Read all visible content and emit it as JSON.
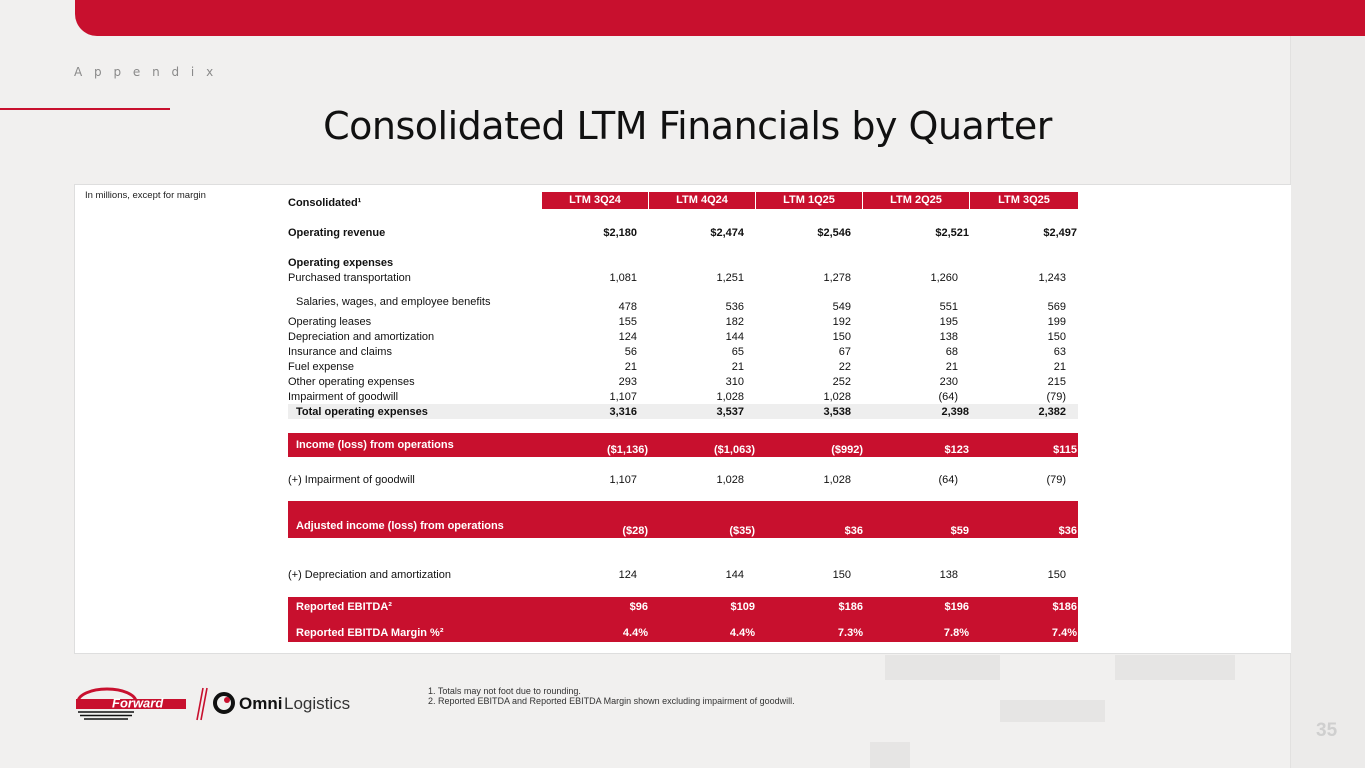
{
  "header": {
    "section": "A p p e n d i x",
    "title": "Consolidated LTM Financials by Quarter"
  },
  "table": {
    "units_note": "In millions, except for margin",
    "corner": "Consolidated¹",
    "columns": [
      "LTM 3Q24",
      "LTM 4Q24",
      "LTM 1Q25",
      "LTM 2Q25",
      "LTM 3Q25"
    ],
    "operating_revenue": {
      "label": "Operating revenue",
      "values": [
        "$2,180",
        "$2,474",
        "$2,546",
        "$2,521",
        "$2,497"
      ]
    },
    "operating_expenses_heading": "Operating expenses",
    "expense_rows": [
      {
        "label": "Purchased transportation",
        "values": [
          "1,081",
          "1,251",
          "1,278",
          "1,260",
          "1,243"
        ]
      },
      {
        "label": "Salaries, wages, and employee benefits",
        "values": [
          "478",
          "536",
          "549",
          "551",
          "569"
        ]
      },
      {
        "label": "Operating leases",
        "values": [
          "155",
          "182",
          "192",
          "195",
          "199"
        ]
      },
      {
        "label": "Depreciation and amortization",
        "values": [
          "124",
          "144",
          "150",
          "138",
          "150"
        ]
      },
      {
        "label": "Insurance and claims",
        "values": [
          "56",
          "65",
          "67",
          "68",
          "63"
        ]
      },
      {
        "label": "Fuel expense",
        "values": [
          "21",
          "21",
          "22",
          "21",
          "21"
        ]
      },
      {
        "label": "Other operating expenses",
        "values": [
          "293",
          "310",
          "252",
          "230",
          "215"
        ]
      },
      {
        "label": "Impairment of goodwill",
        "values": [
          "1,107",
          "1,028",
          "1,028",
          "(64)",
          "(79)"
        ]
      }
    ],
    "total_operating_expenses": {
      "label": "Total operating expenses",
      "values": [
        "3,316",
        "3,537",
        "3,538",
        "2,398",
        "2,382"
      ]
    },
    "income_from_operations": {
      "label": "Income (loss) from operations",
      "values": [
        "($1,136)",
        "($1,063)",
        "($992)",
        "$123",
        "$115"
      ]
    },
    "plus_impairment": {
      "label": "(+) Impairment of goodwill",
      "values": [
        "1,107",
        "1,028",
        "1,028",
        "(64)",
        "(79)"
      ]
    },
    "adjusted_income": {
      "label": "Adjusted income (loss) from operations",
      "values": [
        "($28)",
        "($35)",
        "$36",
        "$59",
        "$36"
      ]
    },
    "plus_depreciation": {
      "label": "(+) Depreciation and amortization",
      "values": [
        "124",
        "144",
        "150",
        "138",
        "150"
      ]
    },
    "reported_ebitda": {
      "label": "Reported EBITDA²",
      "values": [
        "$96",
        "$109",
        "$186",
        "$196",
        "$186"
      ]
    },
    "reported_ebitda_margin": {
      "label": "Reported EBITDA Margin %²",
      "values": [
        "4.4%",
        "4.4%",
        "7.3%",
        "7.8%",
        "7.4%"
      ]
    }
  },
  "footnotes": [
    "1.  Totals may not foot due to rounding.",
    "2.  Reported EBITDA and Reported EBITDA Margin shown excluding impairment of goodwill."
  ],
  "logos": {
    "forward": "Forward",
    "omni_bold": "Omni",
    "omni_light": "Logistics"
  },
  "page_number": "35",
  "colors": {
    "brand_red": "#c8102e",
    "background": "#f1f0ef"
  }
}
